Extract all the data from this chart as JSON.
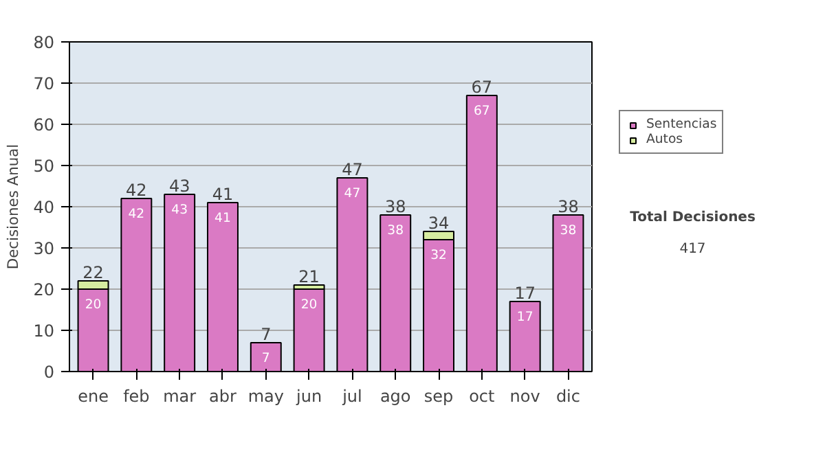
{
  "chart_data": {
    "type": "bar",
    "stacked": true,
    "ylabel": "Decisiones Anual",
    "categories": [
      "ene",
      "feb",
      "mar",
      "abr",
      "may",
      "jun",
      "jul",
      "ago",
      "sep",
      "oct",
      "nov",
      "dic"
    ],
    "series": [
      {
        "name": "Sentencias",
        "color": "#da7ac4",
        "values": [
          20,
          42,
          43,
          41,
          7,
          20,
          47,
          38,
          32,
          67,
          17,
          38
        ],
        "value_labels": [
          "20",
          "42",
          "43",
          "41",
          "7",
          "20",
          "47",
          "38",
          "32",
          "67",
          "17",
          "38"
        ]
      },
      {
        "name": "Autos",
        "color": "#d6eca0",
        "values": [
          2,
          0,
          0,
          0,
          0,
          1,
          0,
          0,
          2,
          0,
          0,
          0
        ]
      }
    ],
    "totals": [
      "22",
      "42",
      "43",
      "41",
      "7",
      "21",
      "47",
      "38",
      "34",
      "67",
      "17",
      "38"
    ],
    "ylim": [
      0,
      80
    ],
    "yticks": [
      0,
      10,
      20,
      30,
      40,
      50,
      60,
      70,
      80
    ],
    "grid": "y",
    "legend": "right",
    "annotations": [
      "Total Decisiones",
      "417"
    ]
  }
}
